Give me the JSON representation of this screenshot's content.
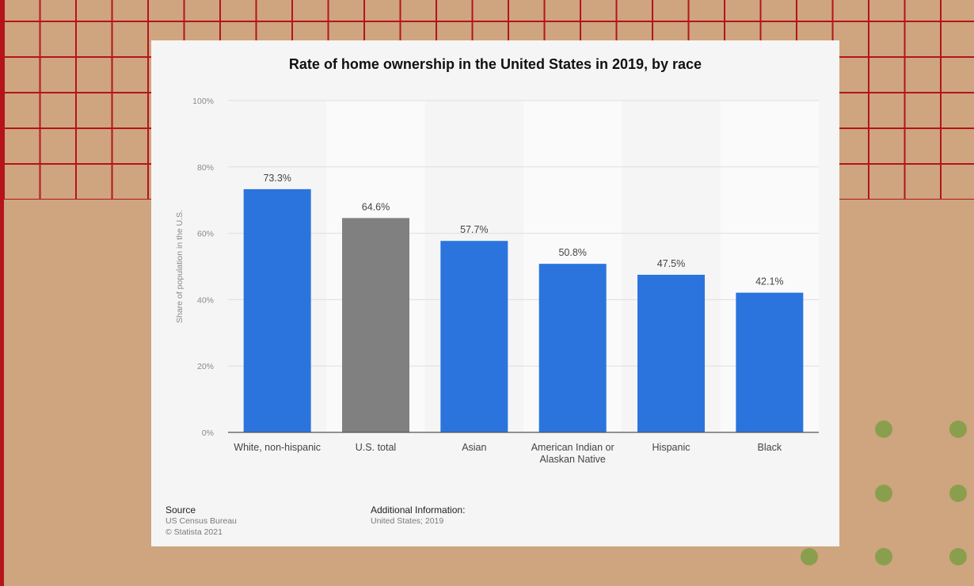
{
  "colors": {
    "background": "#cea57f",
    "grid_lines": "#b5141b",
    "dots": "#8a9f4e",
    "bar_primary": "#2b74dd",
    "bar_highlight": "#808080"
  },
  "chart_data": {
    "type": "bar",
    "title": "Rate of home ownership in the United States in 2019, by race",
    "ylabel": "Share of population in the U.S.",
    "xlabel": "",
    "ylim": [
      0,
      100
    ],
    "yticks": [
      "0%",
      "20%",
      "40%",
      "60%",
      "80%",
      "100%"
    ],
    "ytick_values": [
      0,
      20,
      40,
      60,
      80,
      100
    ],
    "categories": [
      [
        "White, non-hispanic"
      ],
      [
        "U.S. total"
      ],
      [
        "Asian"
      ],
      [
        "American Indian or",
        "Alaskan Native"
      ],
      [
        "Hispanic"
      ],
      [
        "Black"
      ]
    ],
    "values": [
      73.3,
      64.6,
      57.7,
      50.8,
      47.5,
      42.1
    ],
    "data_labels": [
      "73.3%",
      "64.6%",
      "57.7%",
      "50.8%",
      "47.5%",
      "42.1%"
    ],
    "highlight_index": 1,
    "grid": true
  },
  "footer": {
    "source_label": "Source",
    "source_lines": [
      "US Census Bureau",
      "© Statista 2021"
    ],
    "additional_label": "Additional Information:",
    "additional_lines": [
      "United States; 2019"
    ]
  }
}
